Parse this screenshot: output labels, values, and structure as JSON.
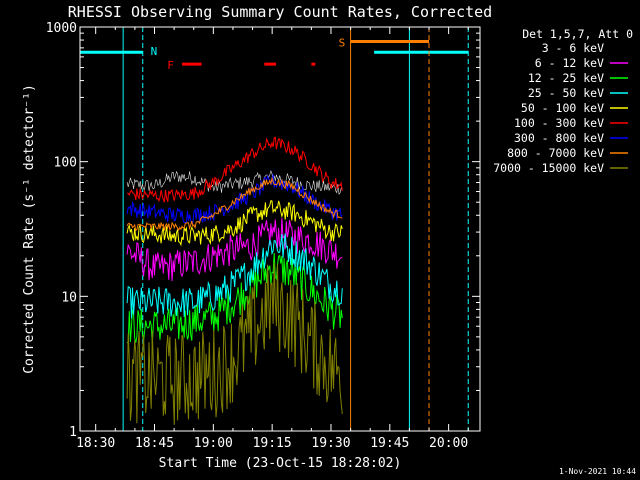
{
  "chart_data": {
    "type": "line",
    "title": "RHESSI Observing Summary Count Rates, Corrected",
    "xlabel": "Start Time (23-Oct-15 18:28:02)",
    "ylabel": "Corrected Count Rate (s⁻¹ detector⁻¹)",
    "yscale": "log",
    "ylim": [
      1,
      1000
    ],
    "xlim": [
      "18:26",
      "20:08"
    ],
    "x_tick_labels": [
      "18:30",
      "18:45",
      "19:00",
      "19:15",
      "19:30",
      "19:45",
      "20:00"
    ],
    "y_tick_labels": [
      "1",
      "10",
      "100",
      "1000"
    ],
    "legend_title": "Det 1,5,7, Att 0",
    "legend_position": "right",
    "footer_date": "1-Nov-2021 10:44",
    "flags": [
      {
        "label": "N",
        "color": "#00ffff"
      },
      {
        "label": "F",
        "color": "#ff0000"
      },
      {
        "label": "S",
        "color": "#ff8000"
      }
    ],
    "series": [
      {
        "name": "3 - 6 keV",
        "color": "#000000",
        "points": [
          [
            "18:38",
            68
          ],
          [
            "18:45",
            66
          ],
          [
            "18:50",
            78
          ],
          [
            "18:55",
            76
          ],
          [
            "19:00",
            64
          ],
          [
            "19:05",
            68
          ],
          [
            "19:10",
            72
          ],
          [
            "19:15",
            78
          ],
          [
            "19:20",
            72
          ],
          [
            "19:25",
            66
          ],
          [
            "19:30",
            64
          ],
          [
            "19:33",
            64
          ]
        ]
      },
      {
        "name": "6 - 12 keV",
        "color": "#ff00ff",
        "points": [
          [
            "18:38",
            22
          ],
          [
            "18:45",
            16
          ],
          [
            "18:50",
            17
          ],
          [
            "18:55",
            18
          ],
          [
            "19:00",
            20
          ],
          [
            "19:05",
            22
          ],
          [
            "19:10",
            24
          ],
          [
            "19:15",
            30
          ],
          [
            "19:20",
            28
          ],
          [
            "19:25",
            26
          ],
          [
            "19:30",
            22
          ],
          [
            "19:33",
            20
          ]
        ]
      },
      {
        "name": "12 - 25 keV",
        "color": "#00ff00",
        "points": [
          [
            "18:38",
            6
          ],
          [
            "18:45",
            6
          ],
          [
            "18:50",
            6
          ],
          [
            "18:55",
            6.5
          ],
          [
            "19:00",
            7
          ],
          [
            "19:05",
            9
          ],
          [
            "19:10",
            12
          ],
          [
            "19:15",
            17
          ],
          [
            "19:20",
            15
          ],
          [
            "19:25",
            11
          ],
          [
            "19:30",
            8
          ],
          [
            "19:33",
            7
          ]
        ]
      },
      {
        "name": "25 - 50 keV",
        "color": "#00ffff",
        "points": [
          [
            "18:38",
            9
          ],
          [
            "18:45",
            9
          ],
          [
            "18:50",
            9
          ],
          [
            "18:55",
            9
          ],
          [
            "19:00",
            10
          ],
          [
            "19:05",
            12
          ],
          [
            "19:10",
            16
          ],
          [
            "19:15",
            25
          ],
          [
            "19:20",
            22
          ],
          [
            "19:25",
            17
          ],
          [
            "19:30",
            12
          ],
          [
            "19:33",
            11
          ]
        ]
      },
      {
        "name": "50 - 100 keV",
        "color": "#ffff00",
        "points": [
          [
            "18:38",
            30
          ],
          [
            "18:45",
            29
          ],
          [
            "18:50",
            28
          ],
          [
            "18:55",
            28
          ],
          [
            "19:00",
            29
          ],
          [
            "19:05",
            32
          ],
          [
            "19:10",
            40
          ],
          [
            "19:15",
            45
          ],
          [
            "19:20",
            42
          ],
          [
            "19:25",
            36
          ],
          [
            "19:30",
            30
          ],
          [
            "19:33",
            30
          ]
        ]
      },
      {
        "name": "100 - 300 keV",
        "color": "#ff0000",
        "points": [
          [
            "18:38",
            58
          ],
          [
            "18:45",
            56
          ],
          [
            "18:50",
            56
          ],
          [
            "18:55",
            58
          ],
          [
            "19:00",
            70
          ],
          [
            "19:05",
            90
          ],
          [
            "19:10",
            115
          ],
          [
            "19:15",
            140
          ],
          [
            "19:20",
            125
          ],
          [
            "19:25",
            95
          ],
          [
            "19:30",
            70
          ],
          [
            "19:33",
            66
          ]
        ]
      },
      {
        "name": "300 - 800 keV",
        "color": "#0000ff",
        "points": [
          [
            "18:38",
            45
          ],
          [
            "18:45",
            42
          ],
          [
            "18:50",
            40
          ],
          [
            "18:55",
            40
          ],
          [
            "19:00",
            42
          ],
          [
            "19:05",
            48
          ],
          [
            "19:10",
            58
          ],
          [
            "19:15",
            72
          ],
          [
            "19:20",
            66
          ],
          [
            "19:25",
            52
          ],
          [
            "19:30",
            43
          ],
          [
            "19:33",
            40
          ]
        ]
      },
      {
        "name": "800 - 7000 keV",
        "color": "#ff8000",
        "points": [
          [
            "18:38",
            33
          ],
          [
            "18:45",
            33
          ],
          [
            "18:50",
            33
          ],
          [
            "18:55",
            34
          ],
          [
            "19:00",
            40
          ],
          [
            "19:05",
            50
          ],
          [
            "19:10",
            62
          ],
          [
            "19:15",
            72
          ],
          [
            "19:20",
            66
          ],
          [
            "19:25",
            52
          ],
          [
            "19:30",
            42
          ],
          [
            "19:33",
            40
          ]
        ]
      },
      {
        "name": "7000 - 15000 keV",
        "color": "#808000",
        "points": [
          [
            "18:38",
            2.5
          ],
          [
            "18:45",
            2.5
          ],
          [
            "18:50",
            2.4
          ],
          [
            "18:55",
            2.5
          ],
          [
            "19:00",
            2.7
          ],
          [
            "19:05",
            3.5
          ],
          [
            "19:10",
            5.5
          ],
          [
            "19:15",
            9
          ],
          [
            "19:20",
            7
          ],
          [
            "19:25",
            4.5
          ],
          [
            "19:30",
            3
          ],
          [
            "19:33",
            2.6
          ]
        ]
      }
    ]
  }
}
